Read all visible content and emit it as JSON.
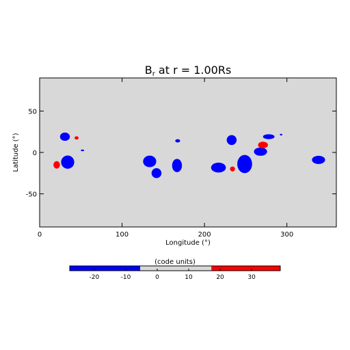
{
  "chart_data": {
    "type": "map",
    "title": "B",
    "title_sub": "r",
    "title_rest": " at r = 1.00Rs",
    "xlabel": "Longitude (°)",
    "ylabel": "Latitude (°)",
    "xlim": [
      0,
      360
    ],
    "ylim": [
      -90,
      90
    ],
    "xticks": [
      0,
      100,
      200,
      300
    ],
    "yticks": [
      -50,
      0,
      50
    ],
    "background": "#d8d8d8",
    "regions": [
      {
        "lon": 30.7,
        "lat": 19,
        "rx": 6,
        "ry": 5,
        "value": -20
      },
      {
        "lon": 20.7,
        "lat": -15,
        "rx": 4,
        "ry": 4.5,
        "value": 25
      },
      {
        "lon": 44.8,
        "lat": 17.5,
        "rx": 2.5,
        "ry": 2,
        "value": 25
      },
      {
        "lon": 52,
        "lat": 2.5,
        "rx": 2,
        "ry": 1,
        "value": -20
      },
      {
        "lon": 34,
        "lat": -11.7,
        "rx": 8,
        "ry": 8,
        "value": -20
      },
      {
        "lon": 133.5,
        "lat": -10.8,
        "rx": 8,
        "ry": 7,
        "value": -20
      },
      {
        "lon": 141.8,
        "lat": -25,
        "rx": 6,
        "ry": 6,
        "value": -20
      },
      {
        "lon": 166.7,
        "lat": -15.8,
        "rx": 6,
        "ry": 8,
        "value": -20
      },
      {
        "lon": 167.5,
        "lat": 14,
        "rx": 3,
        "ry": 2,
        "value": -20
      },
      {
        "lon": 217,
        "lat": -18.3,
        "rx": 9,
        "ry": 6,
        "value": -20
      },
      {
        "lon": 233,
        "lat": 15,
        "rx": 6,
        "ry": 6,
        "value": -20
      },
      {
        "lon": 234,
        "lat": -20,
        "rx": 3,
        "ry": 3,
        "value": 25
      },
      {
        "lon": 248.8,
        "lat": -14,
        "rx": 9,
        "ry": 11,
        "value": -20
      },
      {
        "lon": 268,
        "lat": 1,
        "rx": 8,
        "ry": 5,
        "value": -20
      },
      {
        "lon": 271,
        "lat": 9,
        "rx": 6,
        "ry": 4,
        "value": 25
      },
      {
        "lon": 278,
        "lat": 19,
        "rx": 7,
        "ry": 3,
        "value": -20
      },
      {
        "lon": 293,
        "lat": 21.5,
        "rx": 1.5,
        "ry": 1,
        "value": -20
      },
      {
        "lon": 338.4,
        "lat": -9,
        "rx": 8,
        "ry": 5,
        "value": -20
      }
    ],
    "colorbar": {
      "label": "(code units)",
      "bounds": [
        -27.8,
        -5.4,
        17.2,
        39.1
      ],
      "colors": [
        "#0000ff",
        "#d8d8d8",
        "#ff0000"
      ],
      "ticks": [
        -20,
        -10,
        0,
        10,
        20,
        30
      ]
    }
  }
}
